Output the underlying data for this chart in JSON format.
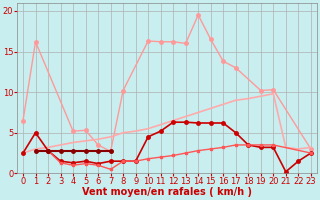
{
  "background_color": "#c8eef0",
  "grid_color": "#b0b0b0",
  "xlabel": "Vent moyen/en rafales ( km/h )",
  "xlabel_color": "#cc0000",
  "xlabel_fontsize": 7,
  "tick_color": "#cc0000",
  "tick_fontsize": 6,
  "xlim": [
    -0.5,
    23.5
  ],
  "ylim": [
    0,
    21
  ],
  "yticks": [
    0,
    5,
    10,
    15,
    20
  ],
  "xticks": [
    0,
    1,
    2,
    3,
    4,
    5,
    6,
    7,
    8,
    9,
    10,
    11,
    12,
    13,
    14,
    15,
    16,
    17,
    18,
    19,
    20,
    21,
    22,
    23
  ],
  "series": [
    {
      "x": [
        0,
        1,
        4,
        5,
        6,
        7,
        8,
        10,
        11,
        12,
        13,
        14,
        15,
        16,
        17,
        19,
        20,
        23
      ],
      "y": [
        6.5,
        16.2,
        5.2,
        5.3,
        3.5,
        2.7,
        10.2,
        16.3,
        16.2,
        16.2,
        16.0,
        19.5,
        16.5,
        13.8,
        13.0,
        10.2,
        10.3,
        3.0
      ],
      "color": "#ff9999",
      "linewidth": 1.0,
      "marker": "o",
      "markersize": 2.5,
      "linestyle": "-"
    },
    {
      "x": [
        0,
        1,
        2,
        3,
        4,
        5,
        6,
        7,
        8,
        9,
        10,
        11,
        12,
        13,
        14,
        15,
        16,
        17,
        18,
        19,
        20,
        21,
        22,
        23
      ],
      "y": [
        2.5,
        3.0,
        3.2,
        3.5,
        3.8,
        4.0,
        4.2,
        4.5,
        5.0,
        5.2,
        5.5,
        6.0,
        6.5,
        7.0,
        7.5,
        8.0,
        8.5,
        9.0,
        9.2,
        9.5,
        9.8,
        3.2,
        3.0,
        3.2
      ],
      "color": "#ffaaaa",
      "linewidth": 1.2,
      "marker": null,
      "markersize": 0,
      "linestyle": "-"
    },
    {
      "x": [
        0,
        1,
        2,
        3,
        4,
        5,
        6,
        7,
        8,
        9,
        10,
        11,
        12,
        13,
        14,
        15,
        16,
        17,
        18,
        19,
        20,
        21,
        22,
        23
      ],
      "y": [
        2.5,
        5.0,
        2.8,
        1.5,
        1.3,
        1.5,
        1.2,
        1.5,
        1.5,
        1.5,
        4.5,
        5.2,
        6.3,
        6.3,
        6.2,
        6.2,
        6.2,
        5.0,
        3.5,
        3.2,
        3.2,
        0.2,
        1.5,
        2.5
      ],
      "color": "#cc0000",
      "linewidth": 1.2,
      "marker": "o",
      "markersize": 2.5,
      "linestyle": "-"
    },
    {
      "x": [
        1,
        2,
        3,
        4,
        5,
        6,
        7,
        8,
        9,
        10,
        11,
        12,
        13,
        14,
        15,
        16,
        17,
        18,
        19,
        20,
        23
      ],
      "y": [
        2.8,
        2.8,
        1.3,
        1.0,
        1.2,
        1.0,
        0.5,
        1.5,
        1.5,
        1.8,
        2.0,
        2.2,
        2.5,
        2.8,
        3.0,
        3.2,
        3.5,
        3.5,
        3.5,
        3.5,
        2.5
      ],
      "color": "#ff5555",
      "linewidth": 1.0,
      "marker": "s",
      "markersize": 2.0,
      "linestyle": "-"
    },
    {
      "x": [
        1,
        2,
        3,
        4,
        5,
        6,
        7
      ],
      "y": [
        2.8,
        2.8,
        2.8,
        2.8,
        2.8,
        2.8,
        2.8
      ],
      "color": "#880000",
      "linewidth": 1.5,
      "marker": "o",
      "markersize": 2.5,
      "linestyle": "-"
    }
  ]
}
